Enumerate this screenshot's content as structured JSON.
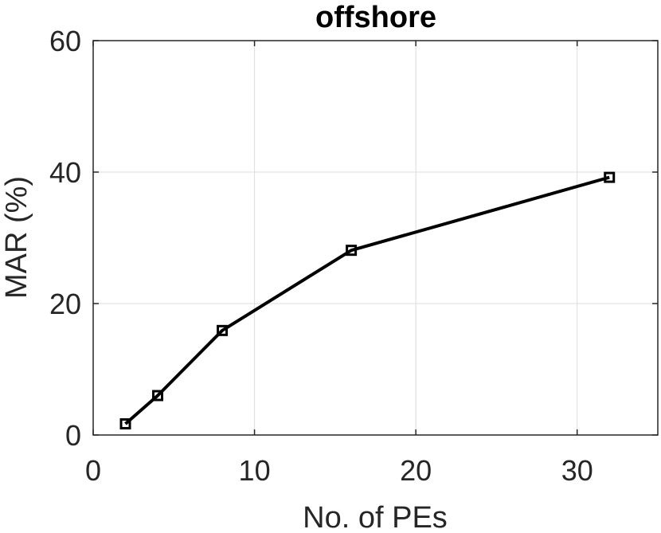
{
  "chart_data": {
    "type": "line",
    "title": "offshore",
    "xlabel": "No. of PEs",
    "ylabel": "MAR (%)",
    "xlim": [
      0,
      35
    ],
    "ylim": [
      0,
      60
    ],
    "xticks": [
      0,
      10,
      20,
      30
    ],
    "yticks": [
      0,
      20,
      40,
      60
    ],
    "grid": true,
    "series": [
      {
        "x": [
          2,
          4,
          8,
          16,
          32
        ],
        "y": [
          1.7,
          6.0,
          15.9,
          28.1,
          39.2
        ],
        "color": "#000000",
        "marker": "square"
      }
    ]
  }
}
